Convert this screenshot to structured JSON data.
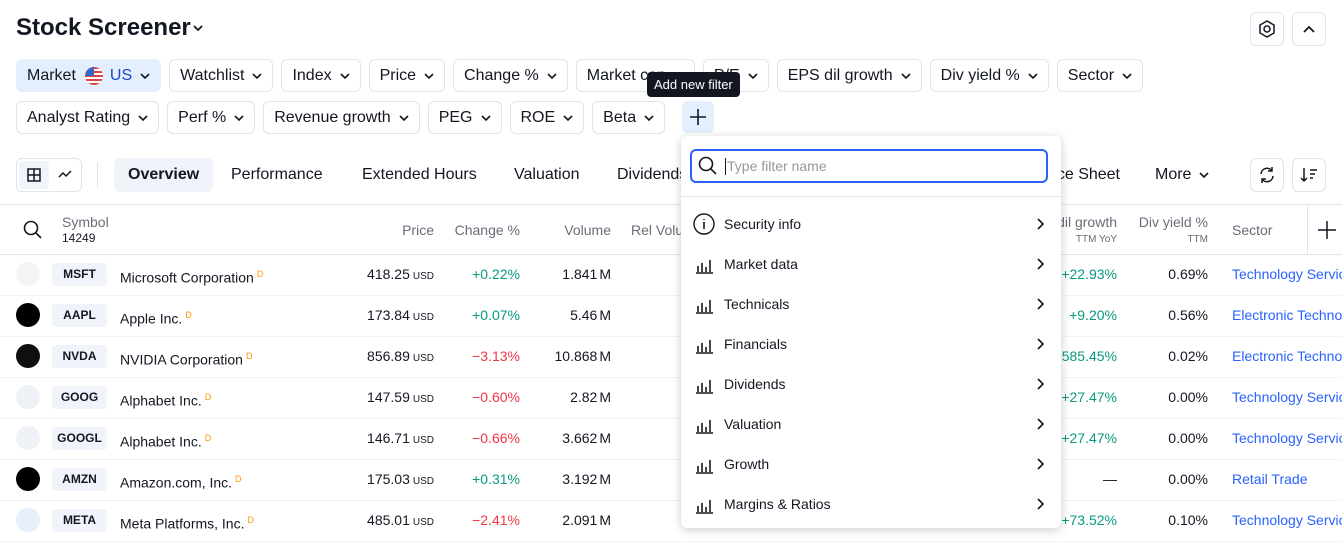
{
  "header": {
    "title": "Stock Screener"
  },
  "filter_rows": [
    [
      {
        "label": "Market",
        "value": "US"
      },
      {
        "label": "Watchlist"
      },
      {
        "label": "Index"
      },
      {
        "label": "Price"
      },
      {
        "label": "Change %"
      },
      {
        "label": "Market cap"
      },
      {
        "label": "P/E"
      },
      {
        "label": "EPS dil growth"
      },
      {
        "label": "Div yield %"
      },
      {
        "label": "Sector"
      }
    ],
    [
      {
        "label": "Analyst Rating"
      },
      {
        "label": "Perf %"
      },
      {
        "label": "Revenue growth"
      },
      {
        "label": "PEG"
      },
      {
        "label": "ROE"
      },
      {
        "label": "Beta"
      }
    ]
  ],
  "add_filter_tooltip": "Add new filter",
  "tabs": [
    "Overview",
    "Performance",
    "Extended Hours",
    "Valuation",
    "Dividends",
    "Balance Sheet",
    "More"
  ],
  "table": {
    "columns": {
      "symbol": "Symbol",
      "count": "14249",
      "price": "Price",
      "change": "Change %",
      "volume": "Volume",
      "rel_volume": "Rel Volume",
      "eps_growth": {
        "label": "EPS dil growth",
        "sub": "TTM YoY"
      },
      "div_yield": {
        "label": "Div yield %",
        "sub": "TTM"
      },
      "sector": "Sector"
    },
    "rows": [
      {
        "ticker": "MSFT",
        "name": "Microsoft Corporation",
        "badge": "D",
        "price": "418.25",
        "currency": "USD",
        "change": "+0.22%",
        "volume": "1.841",
        "volume_unit": "M",
        "eps_growth": "+22.93%",
        "div_yield": "0.69%",
        "sector": "Technology Services"
      },
      {
        "ticker": "AAPL",
        "name": "Apple Inc.",
        "badge": "D",
        "price": "173.84",
        "currency": "USD",
        "change": "+0.07%",
        "volume": "5.46",
        "volume_unit": "M",
        "eps_growth": "+9.20%",
        "div_yield": "0.56%",
        "sector": "Electronic Technology"
      },
      {
        "ticker": "NVDA",
        "name": "NVIDIA Corporation",
        "badge": "D",
        "price": "856.89",
        "currency": "USD",
        "change": "−3.13%",
        "volume": "10.868",
        "volume_unit": "M",
        "eps_growth": "+585.45%",
        "div_yield": "0.02%",
        "sector": "Electronic Technology"
      },
      {
        "ticker": "GOOG",
        "name": "Alphabet Inc.",
        "badge": "D",
        "price": "147.59",
        "currency": "USD",
        "change": "−0.60%",
        "volume": "2.82",
        "volume_unit": "M",
        "eps_growth": "+27.47%",
        "div_yield": "0.00%",
        "sector": "Technology Services"
      },
      {
        "ticker": "GOOGL",
        "name": "Alphabet Inc.",
        "badge": "D",
        "price": "146.71",
        "currency": "USD",
        "change": "−0.66%",
        "volume": "3.662",
        "volume_unit": "M",
        "eps_growth": "+27.47%",
        "div_yield": "0.00%",
        "sector": "Technology Services"
      },
      {
        "ticker": "AMZN",
        "name": "Amazon.com, Inc.",
        "badge": "D",
        "price": "175.03",
        "currency": "USD",
        "change": "+0.31%",
        "volume": "3.192",
        "volume_unit": "M",
        "eps_growth": "—",
        "div_yield": "0.00%",
        "sector": "Retail Trade"
      },
      {
        "ticker": "META",
        "name": "Meta Platforms, Inc.",
        "badge": "D",
        "price": "485.01",
        "currency": "USD",
        "change": "−2.41%",
        "volume": "2.091",
        "volume_unit": "M",
        "eps_growth": "+73.52%",
        "div_yield": "0.10%",
        "sector": "Technology Services"
      }
    ]
  },
  "filter_menu": {
    "placeholder": "Type filter name",
    "items": [
      "Security info",
      "Market data",
      "Technicals",
      "Financials",
      "Dividends",
      "Valuation",
      "Growth",
      "Margins & Ratios"
    ]
  }
}
